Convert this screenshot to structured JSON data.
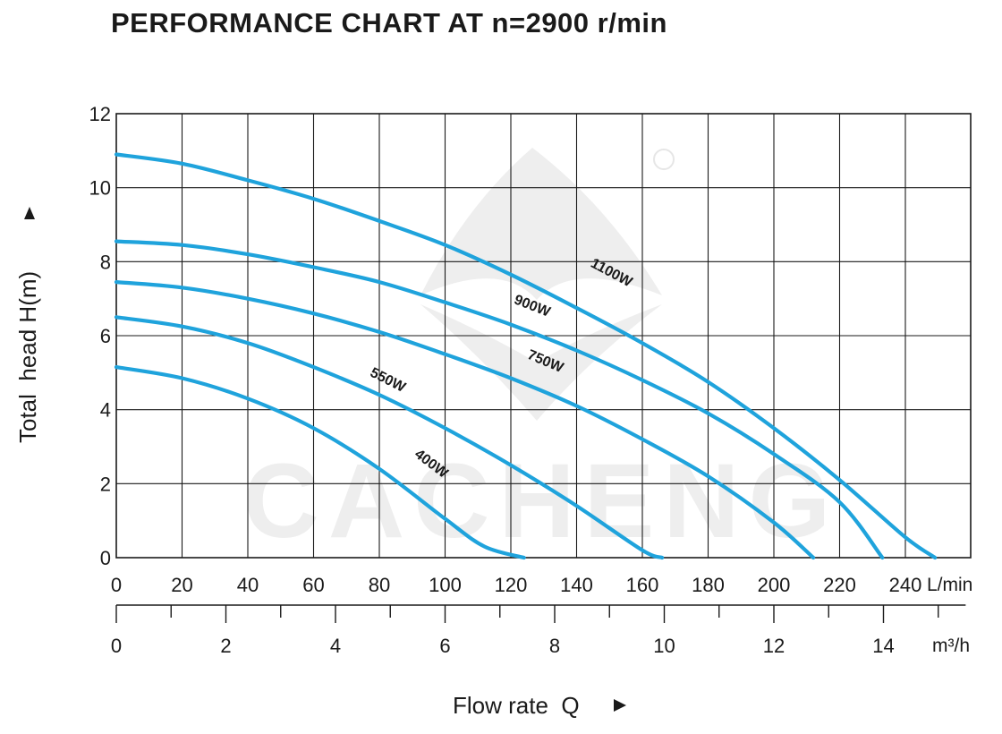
{
  "title": "PERFORMANCE CHART AT n=2900 r/min",
  "watermark": "CACHENG",
  "colors": {
    "curve": "#1fa3dc",
    "grid": "#1a1a1a",
    "watermark": "#e9e9e9"
  },
  "chart_data": {
    "type": "line",
    "title": "PERFORMANCE CHART AT n=2900 r/min",
    "ylabel": "Total  head H(m)",
    "xlabel": "Flow rate  Q",
    "x_unit": "L/min",
    "x2_unit": "m³/h",
    "xlim": [
      0,
      260
    ],
    "ylim": [
      0,
      12
    ],
    "xticks": [
      0,
      20,
      40,
      60,
      80,
      100,
      120,
      140,
      160,
      180,
      200,
      220,
      240
    ],
    "x2ticks": [
      0,
      2,
      4,
      6,
      8,
      10,
      12,
      14
    ],
    "yticks": [
      0,
      2,
      4,
      6,
      8,
      10,
      12
    ],
    "grid": true,
    "series": [
      {
        "name": "400W",
        "x": [
          0,
          20,
          40,
          60,
          80,
          100,
          112,
          124
        ],
        "y": [
          5.15,
          4.85,
          4.3,
          3.5,
          2.4,
          1.05,
          0.3,
          0
        ]
      },
      {
        "name": "550W",
        "x": [
          0,
          20,
          40,
          60,
          80,
          100,
          120,
          140,
          160,
          166
        ],
        "y": [
          6.5,
          6.25,
          5.8,
          5.15,
          4.4,
          3.5,
          2.5,
          1.4,
          0.2,
          0
        ]
      },
      {
        "name": "750W",
        "x": [
          0,
          20,
          40,
          60,
          80,
          100,
          120,
          140,
          160,
          180,
          200,
          212
        ],
        "y": [
          7.45,
          7.3,
          7.0,
          6.6,
          6.1,
          5.5,
          4.85,
          4.1,
          3.2,
          2.2,
          0.95,
          0
        ]
      },
      {
        "name": "900W",
        "x": [
          0,
          20,
          40,
          60,
          80,
          100,
          120,
          140,
          160,
          180,
          200,
          220,
          233
        ],
        "y": [
          8.55,
          8.45,
          8.2,
          7.85,
          7.45,
          6.9,
          6.3,
          5.6,
          4.8,
          3.9,
          2.8,
          1.5,
          0
        ]
      },
      {
        "name": "1100W",
        "x": [
          0,
          20,
          40,
          60,
          80,
          100,
          120,
          140,
          160,
          180,
          200,
          220,
          240,
          249
        ],
        "y": [
          10.9,
          10.65,
          10.2,
          9.7,
          9.1,
          8.45,
          7.65,
          6.75,
          5.8,
          4.75,
          3.5,
          2.1,
          0.55,
          0
        ]
      }
    ]
  }
}
